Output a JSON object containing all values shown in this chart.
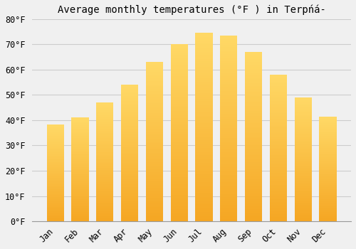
{
  "title": "Average monthly temperatures (°F ) in Terpńá-",
  "months": [
    "Jan",
    "Feb",
    "Mar",
    "Apr",
    "May",
    "Jun",
    "Jul",
    "Aug",
    "Sep",
    "Oct",
    "Nov",
    "Dec"
  ],
  "values": [
    38.3,
    41.2,
    47.0,
    54.0,
    63.0,
    70.2,
    74.5,
    73.5,
    67.0,
    58.0,
    49.0,
    41.3
  ],
  "bar_color_bottom": "#F5A623",
  "bar_color_top": "#FFD966",
  "ylim": [
    0,
    80
  ],
  "yticks": [
    0,
    10,
    20,
    30,
    40,
    50,
    60,
    70,
    80
  ],
  "background_color": "#F0F0F0",
  "grid_color": "#CCCCCC",
  "title_fontsize": 10,
  "tick_fontsize": 8.5,
  "bar_width": 0.7
}
